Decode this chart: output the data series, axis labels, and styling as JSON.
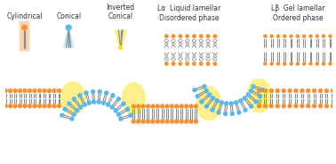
{
  "bg_color": "#ffffff",
  "orange": "#F4923A",
  "orange_bg": "#FAD4B0",
  "blue": "#5BB8E8",
  "blue_bg": "#C0E8F8",
  "yellow": "#F5E020",
  "yellow_bg": "#FDEF80",
  "gray": "#8A8A8A",
  "gray_light": "#BBBBBB",
  "title1": "Cylindrical",
  "title2": "Conical",
  "title3": "Inverted\nConical",
  "title4": "Lα  Liquid lamellar\nDisordered phase",
  "title5": "Lβ  Gel lamellar\nOrdered phase",
  "font_size": 5.5
}
